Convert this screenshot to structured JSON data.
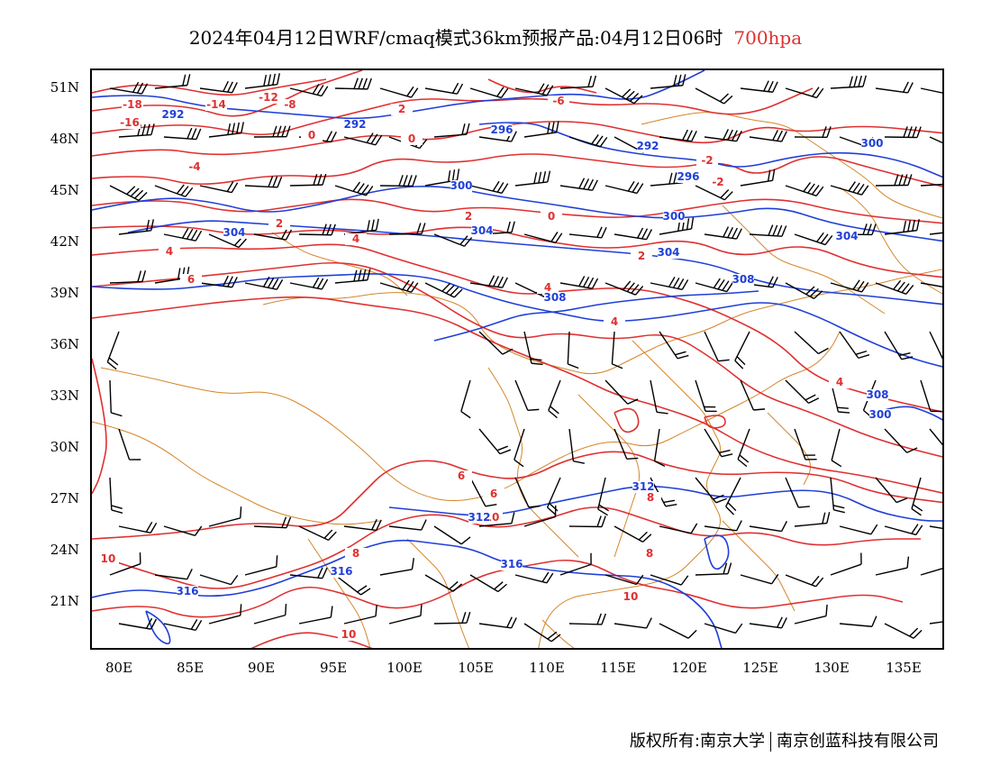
{
  "title": {
    "main": "2024年04月12日WRF/cmaq模式36km预报产品:04月12日06时",
    "level": "700hpa",
    "level_color": "#e03030"
  },
  "axes": {
    "lat_labels": [
      "51N",
      "48N",
      "45N",
      "42N",
      "39N",
      "36N",
      "33N",
      "30N",
      "27N",
      "24N",
      "21N"
    ],
    "lon_labels": [
      "80E",
      "85E",
      "90E",
      "95E",
      "100E",
      "105E",
      "110E",
      "115E",
      "120E",
      "125E",
      "130E",
      "135E"
    ]
  },
  "contours": {
    "temperature_color": "#e03030",
    "height_color": "#1f3fd8",
    "border_color": "#d4862a",
    "temperature_labels": [
      "-16",
      "-18",
      "-14",
      "-12",
      "-8",
      "-6",
      "-4",
      "-2",
      "-2",
      "0",
      "0",
      "0",
      "2",
      "2",
      "2",
      "2",
      "4",
      "4",
      "4",
      "4",
      "4",
      "6",
      "6",
      "6",
      "8",
      "8",
      "8",
      "10",
      "10",
      "10",
      "10"
    ],
    "height_labels": [
      "292",
      "292",
      "292",
      "296",
      "296",
      "300",
      "300",
      "300",
      "300",
      "304",
      "304",
      "304",
      "304",
      "308",
      "308",
      "308",
      "312",
      "312",
      "316",
      "316",
      "316"
    ]
  },
  "copyright": {
    "left": "版权所有:南京大学",
    "right": "南京创蓝科技有限公司"
  },
  "colors": {
    "background": "#ffffff",
    "frame": "#000000",
    "wind_barb": "#000000"
  }
}
